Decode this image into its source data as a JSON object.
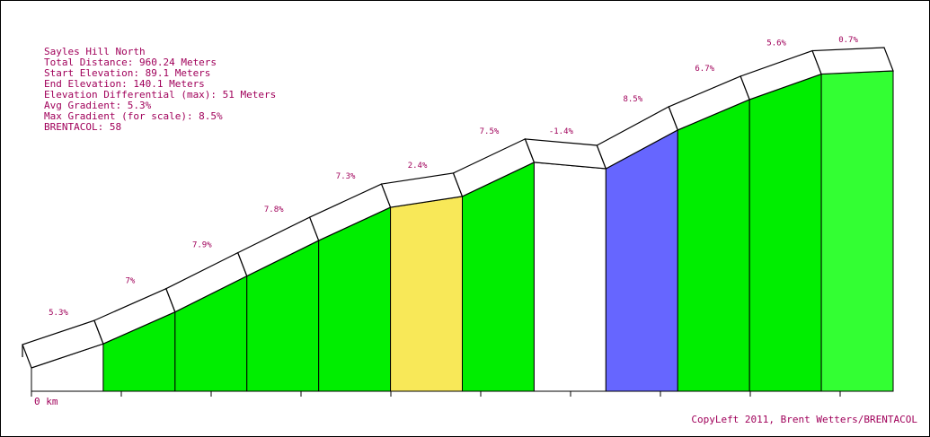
{
  "info": {
    "lines": [
      "Sayles Hill North",
      "Total Distance: 960.24 Meters",
      "Start Elevation: 89.1 Meters",
      "End Elevation: 140.1 Meters",
      "Elevation Differential (max): 51 Meters",
      "Avg Gradient: 5.3%",
      "Max Gradient (for scale): 8.5%",
      "BRENTACOL: 58"
    ]
  },
  "chart_data": {
    "type": "area",
    "title": "Sayles Hill North",
    "start_elevation_m": 89.1,
    "end_elevation_m": 140.1,
    "x_start_label": "0 km",
    "segments": [
      {
        "label": "5.3%",
        "gradient": 5.3,
        "color": "#ffffff"
      },
      {
        "label": "7%",
        "gradient": 7.0,
        "color": "#00ee00"
      },
      {
        "label": "7.9%",
        "gradient": 7.9,
        "color": "#00ee00"
      },
      {
        "label": "7.8%",
        "gradient": 7.8,
        "color": "#00ee00"
      },
      {
        "label": "7.3%",
        "gradient": 7.3,
        "color": "#00ee00"
      },
      {
        "label": "2.4%",
        "gradient": 2.4,
        "color": "#f8e858"
      },
      {
        "label": "7.5%",
        "gradient": 7.5,
        "color": "#00ee00"
      },
      {
        "label": "-1.4%",
        "gradient": -1.4,
        "color": "#ffffff"
      },
      {
        "label": "8.5%",
        "gradient": 8.5,
        "color": "#6666ff"
      },
      {
        "label": "6.7%",
        "gradient": 6.7,
        "color": "#00ee00"
      },
      {
        "label": "5.6%",
        "gradient": 5.6,
        "color": "#00ee00"
      },
      {
        "label": "0.7%",
        "gradient": 0.7,
        "color": "#33ff33"
      }
    ]
  },
  "credit": "CopyLeft 2011, Brent Wetters/BRENTACOL"
}
